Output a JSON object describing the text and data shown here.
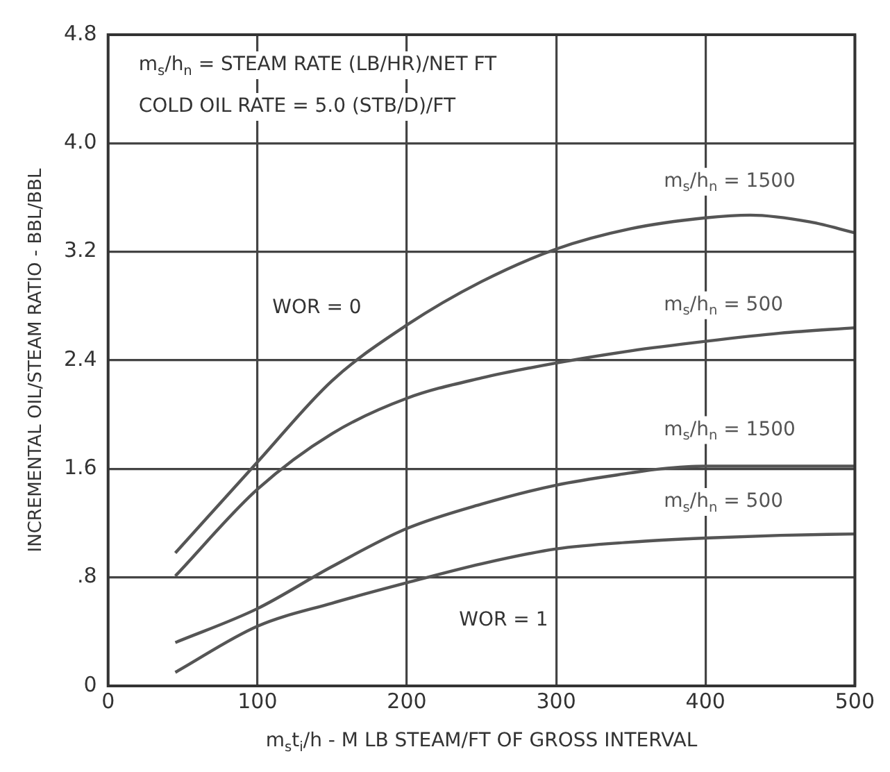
{
  "chart_data": {
    "type": "line",
    "xlabel": "m$_{s}$t$_{i}$/h - M LB STEAM/FT OF GROSS INTERVAL",
    "ylabel": "INCREMENTAL OIL/STEAM RATIO - BBL/BBL",
    "xlim": [
      0,
      500
    ],
    "xticks": [
      0,
      100,
      200,
      300,
      400,
      500
    ],
    "ylim": [
      0,
      4.8
    ],
    "yticks": [
      0,
      {
        "value": 0.8,
        "label": ".8"
      },
      1.6,
      2.4,
      3.2,
      {
        "value": 4.0,
        "label": "4.0"
      },
      4.8
    ],
    "grid": true,
    "legend": false,
    "marker": "none",
    "line_style": "solid",
    "series": [
      {
        "name": "m$_{s}$/h$_{n}$ = 1500",
        "color": "#555555",
        "x": [
          45,
          100,
          150,
          200,
          250,
          300,
          350,
          400,
          430,
          470,
          500
        ],
        "values": [
          0.98,
          1.65,
          2.25,
          2.66,
          2.98,
          3.22,
          3.37,
          3.45,
          3.47,
          3.42,
          3.34
        ]
      },
      {
        "name": "m$_{s}$/h$_{n}$ = 500",
        "color": "#555555",
        "x": [
          45,
          100,
          150,
          200,
          250,
          300,
          350,
          400,
          450,
          500
        ],
        "values": [
          0.81,
          1.45,
          1.86,
          2.12,
          2.27,
          2.38,
          2.47,
          2.54,
          2.6,
          2.64
        ]
      },
      {
        "name": "m$_{s}$/h$_{n}$ = 1500",
        "color": "#555555",
        "x": [
          45,
          100,
          150,
          200,
          250,
          300,
          350,
          370,
          400,
          450,
          500
        ],
        "values": [
          0.32,
          0.57,
          0.88,
          1.16,
          1.34,
          1.48,
          1.57,
          1.6,
          1.62,
          1.62,
          1.62
        ]
      },
      {
        "name": "m$_{s}$/h$_{n}$ = 500",
        "color": "#555555",
        "x": [
          45,
          100,
          150,
          200,
          250,
          300,
          350,
          400,
          450,
          500
        ],
        "values": [
          0.1,
          0.44,
          0.61,
          0.76,
          0.9,
          1.01,
          1.06,
          1.09,
          1.11,
          1.12
        ]
      }
    ],
    "annotations": [
      "m$_{s}$/h$_{n}$ = STEAM RATE (LB/HR)/NET FT",
      "COLD OIL RATE = 5.0 (STB/D)/FT",
      "WOR = 0",
      "WOR = 1"
    ]
  }
}
